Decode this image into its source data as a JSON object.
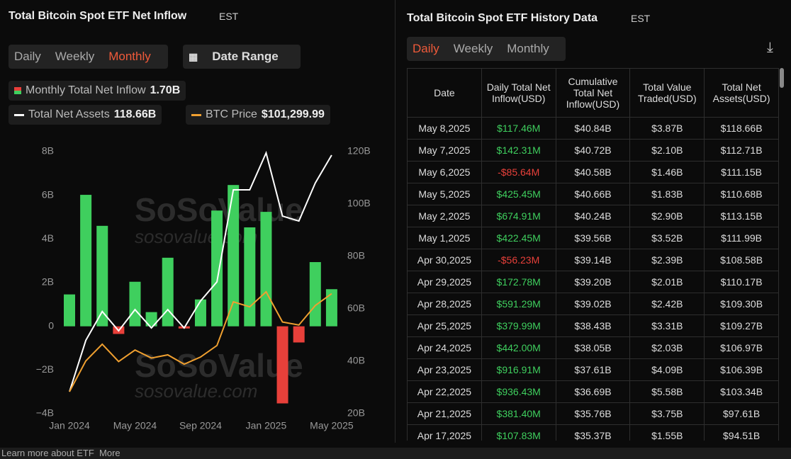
{
  "left_panel": {
    "title": "Total Bitcoin Spot ETF Net Inflow",
    "timezone": "EST",
    "tabs": [
      "Daily",
      "Weekly",
      "Monthly"
    ],
    "date_range": "Date Range",
    "legend": [
      {
        "name": "Monthly Total Net Inflow",
        "value": "1.70B"
      },
      {
        "name": "Total Net Assets",
        "value": "118.66B"
      },
      {
        "name": "BTC Price",
        "value": "$101,299.99"
      }
    ]
  },
  "chart_data": {
    "type": "bar-line",
    "categories": [
      "Jan 2024",
      null,
      null,
      null,
      "May 2024",
      null,
      null,
      null,
      "Sep 2024",
      null,
      null,
      null,
      "Jan 2025",
      null,
      null,
      null,
      "May 2025"
    ],
    "series": [
      {
        "name": "Monthly Total Net Inflow",
        "type": "bar",
        "color": "#3fcf5e",
        "negative_color": "#e8403a",
        "values": [
          1.46,
          6.02,
          4.6,
          -0.35,
          2.04,
          0.65,
          3.14,
          -0.1,
          1.23,
          5.3,
          6.47,
          4.53,
          5.24,
          -3.53,
          -0.74,
          2.94,
          1.7
        ]
      },
      {
        "name": "Total Net Assets",
        "type": "line",
        "axis": "y2",
        "color": "#ffffff",
        "values": [
          28.4,
          48,
          59,
          51.6,
          59.7,
          52.7,
          59.7,
          52.7,
          63,
          70.3,
          105.4,
          105.4,
          119.5,
          95.4,
          93.5,
          108,
          118.66
        ]
      },
      {
        "name": "BTC Price",
        "type": "line",
        "color": "#f0a030",
        "values": [
          42500,
          61000,
          71000,
          60600,
          67500,
          62700,
          64600,
          59000,
          63300,
          70200,
          96400,
          93400,
          102400,
          84300,
          82500,
          94200,
          101299.99
        ]
      }
    ],
    "ylim": [
      -4,
      8
    ],
    "yticks": [
      {
        "value": -4,
        "label": "−4B"
      },
      {
        "value": -2,
        "label": "−2B"
      },
      {
        "value": 0,
        "label": "0"
      },
      {
        "value": 2,
        "label": "2B"
      },
      {
        "value": 4,
        "label": "4B"
      },
      {
        "value": 6,
        "label": "6B"
      },
      {
        "value": 8,
        "label": "8B"
      }
    ],
    "y2lim": [
      20,
      120
    ],
    "y2ticks": [
      {
        "value": 20,
        "label": "20B"
      },
      {
        "value": 40,
        "label": "40B"
      },
      {
        "value": 60,
        "label": "60B"
      },
      {
        "value": 80,
        "label": "80B"
      },
      {
        "value": 100,
        "label": "100B"
      },
      {
        "value": 120,
        "label": "120B"
      }
    ]
  },
  "watermark": {
    "brand": "SoSoValue",
    "url": "sosovalue.com"
  },
  "right_panel": {
    "title": "Total Bitcoin Spot ETF History Data",
    "timezone": "EST",
    "tabs": [
      "Daily",
      "Weekly",
      "Monthly"
    ],
    "table": {
      "header": [
        "Date",
        "Daily Total Net Inflow(USD)",
        "Cumulative Total Net Inflow(USD)",
        "Total Value Traded(USD)",
        "Total Net Assets(USD)"
      ],
      "rows": [
        [
          "May 8,2025",
          "$117.46M",
          "$40.84B",
          "$3.87B",
          "$118.66B"
        ],
        [
          "May 7,2025",
          "$142.31M",
          "$40.72B",
          "$2.10B",
          "$112.71B"
        ],
        [
          "May 6,2025",
          "-$85.64M",
          "$40.58B",
          "$1.46B",
          "$111.15B"
        ],
        [
          "May 5,2025",
          "$425.45M",
          "$40.66B",
          "$1.83B",
          "$110.68B"
        ],
        [
          "May 2,2025",
          "$674.91M",
          "$40.24B",
          "$2.90B",
          "$113.15B"
        ],
        [
          "May 1,2025",
          "$422.45M",
          "$39.56B",
          "$3.52B",
          "$111.99B"
        ],
        [
          "Apr 30,2025",
          "-$56.23M",
          "$39.14B",
          "$2.39B",
          "$108.58B"
        ],
        [
          "Apr 29,2025",
          "$172.78M",
          "$39.20B",
          "$2.01B",
          "$110.17B"
        ],
        [
          "Apr 28,2025",
          "$591.29M",
          "$39.02B",
          "$2.42B",
          "$109.30B"
        ],
        [
          "Apr 25,2025",
          "$379.99M",
          "$38.43B",
          "$3.31B",
          "$109.27B"
        ],
        [
          "Apr 24,2025",
          "$442.00M",
          "$38.05B",
          "$2.03B",
          "$106.97B"
        ],
        [
          "Apr 23,2025",
          "$916.91M",
          "$37.61B",
          "$4.09B",
          "$106.39B"
        ],
        [
          "Apr 22,2025",
          "$936.43M",
          "$36.69B",
          "$5.58B",
          "$103.34B"
        ],
        [
          "Apr 21,2025",
          "$381.40M",
          "$35.76B",
          "$3.75B",
          "$97.61B"
        ],
        [
          "Apr 17,2025",
          "$107.83M",
          "$35.37B",
          "$1.55B",
          "$94.51B"
        ]
      ]
    }
  },
  "footer": {
    "text": "Learn more about ETF",
    "link": "More"
  }
}
